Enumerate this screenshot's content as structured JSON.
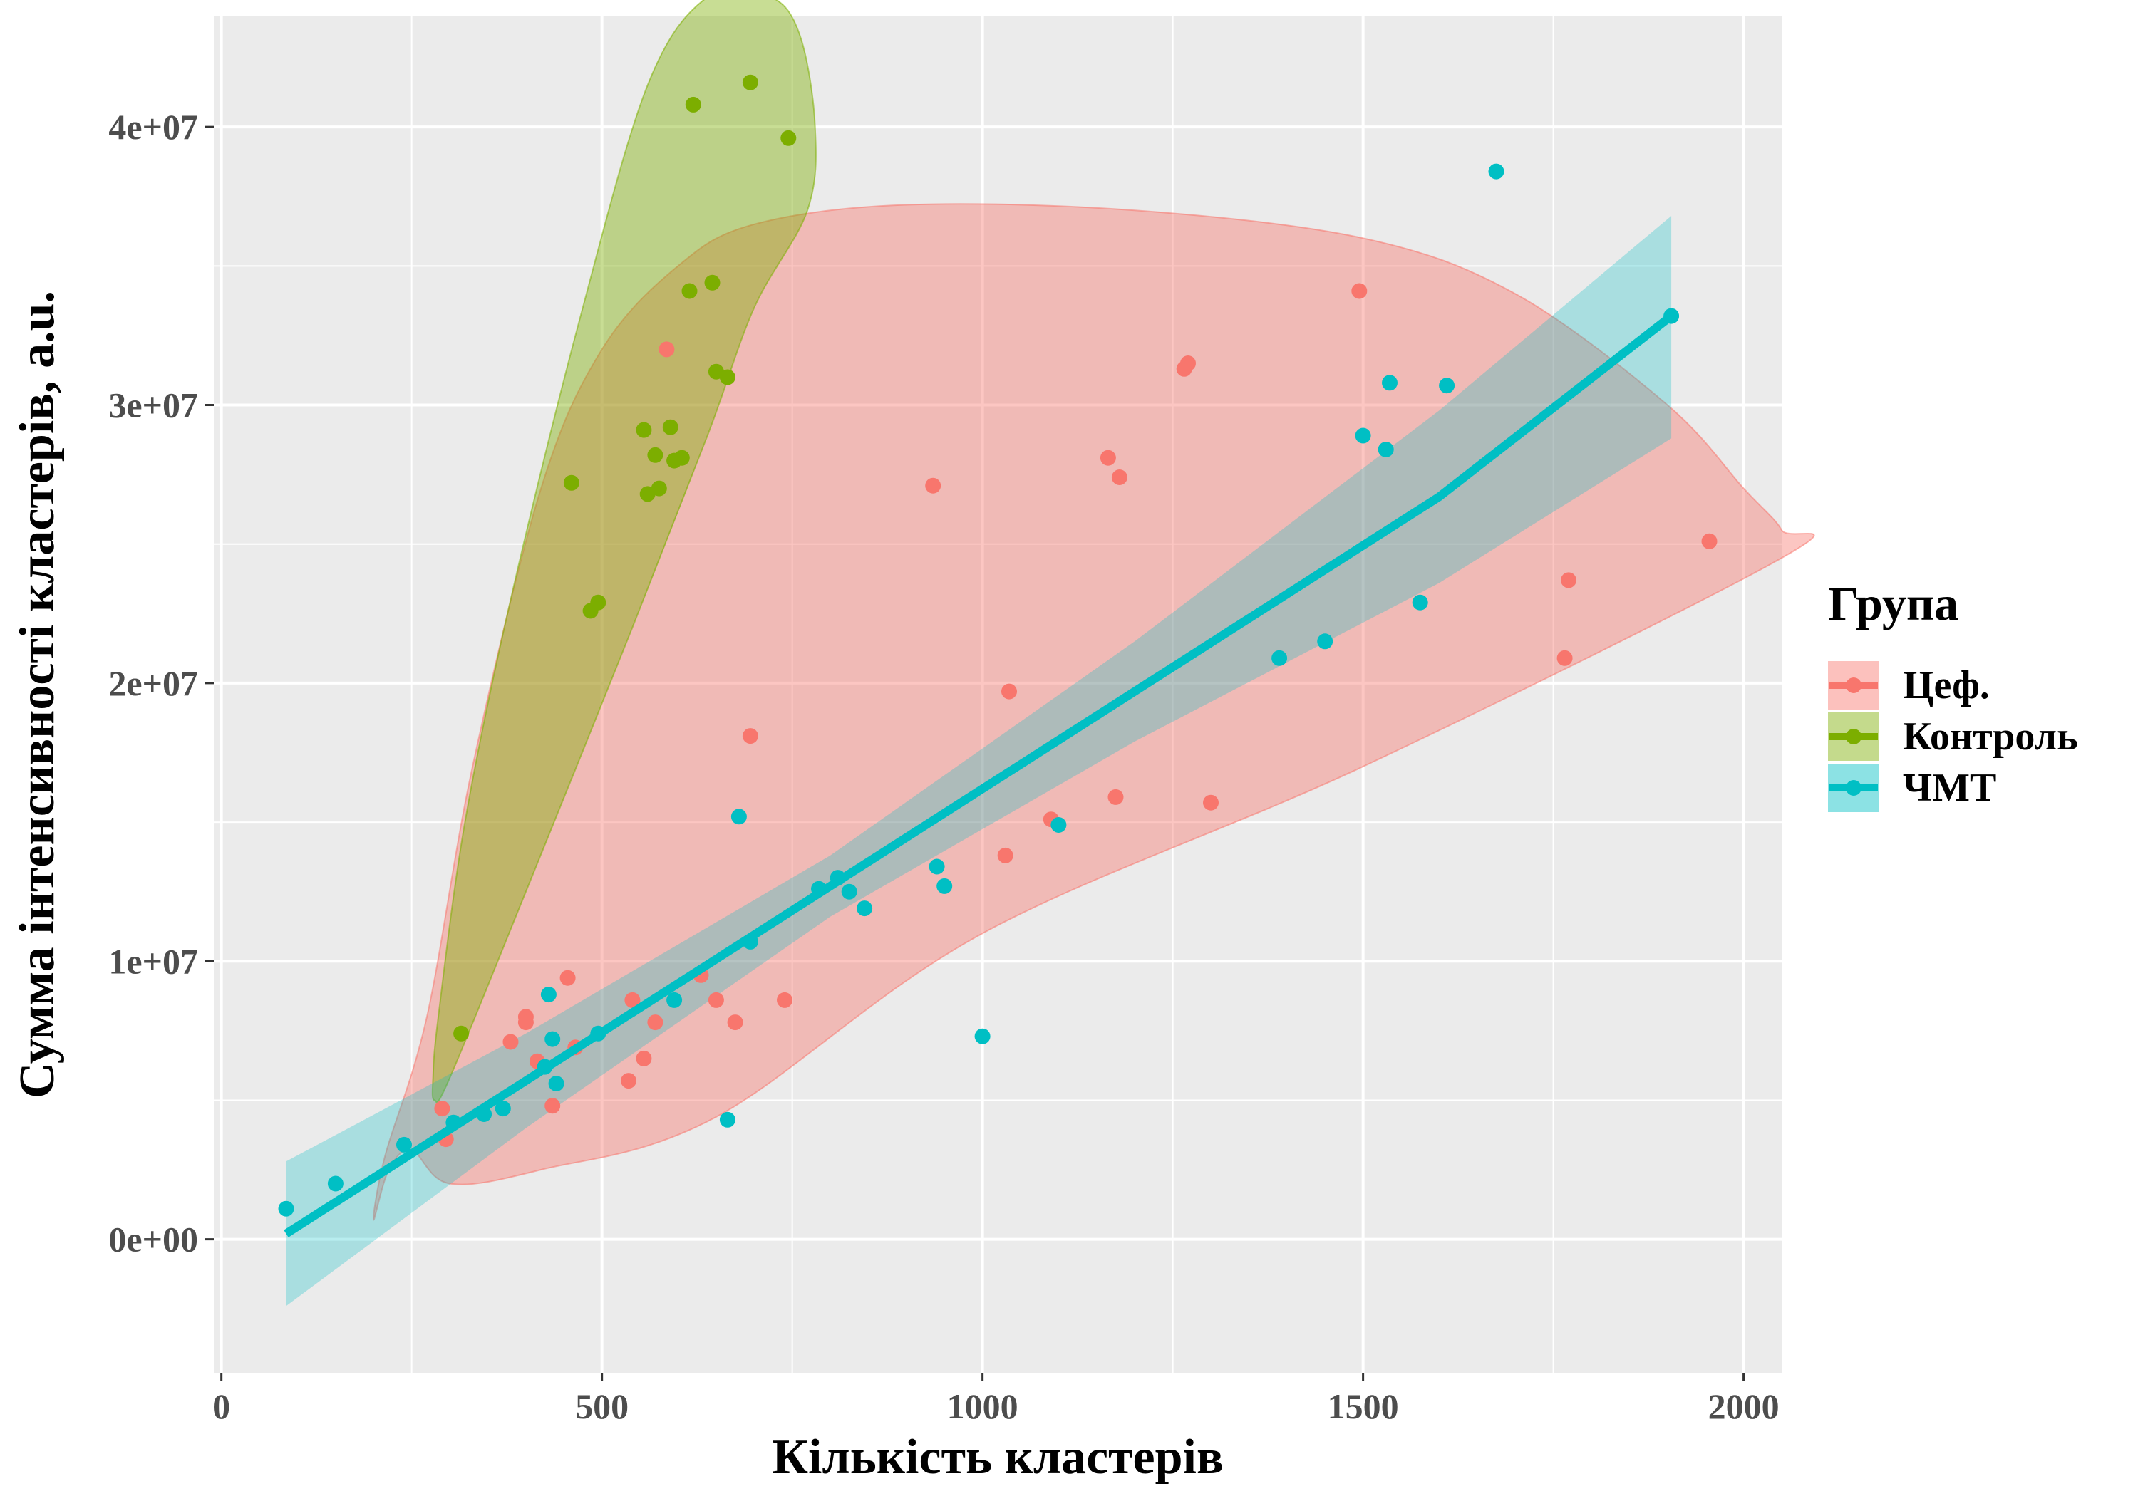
{
  "chart_data": {
    "type": "scatter",
    "title": "",
    "xlabel": "Кількість кластерів",
    "ylabel": "Сумма інтенсивності кластерів, a.u.",
    "xlim": [
      -10,
      2050
    ],
    "ylim": [
      -4800000,
      44000000
    ],
    "x_ticks": [
      0,
      500,
      1000,
      1500,
      2000
    ],
    "x_tick_labels": [
      "0",
      "500",
      "1000",
      "1500",
      "2000"
    ],
    "y_ticks": [
      0,
      10000000,
      20000000,
      30000000,
      40000000
    ],
    "y_tick_labels": [
      "0e+00",
      "1e+07",
      "2e+07",
      "3e+07",
      "4e+07"
    ],
    "grid": true,
    "legend": {
      "title": "Група",
      "position": "right"
    },
    "series": [
      {
        "name": "Цеф.",
        "color": "#F8766D",
        "points": [
          {
            "x": 290,
            "y": 4700000
          },
          {
            "x": 295,
            "y": 3600000
          },
          {
            "x": 380,
            "y": 7100000
          },
          {
            "x": 400,
            "y": 8000000
          },
          {
            "x": 400,
            "y": 7800000
          },
          {
            "x": 415,
            "y": 6400000
          },
          {
            "x": 435,
            "y": 4800000
          },
          {
            "x": 455,
            "y": 9400000
          },
          {
            "x": 465,
            "y": 6900000
          },
          {
            "x": 535,
            "y": 5700000
          },
          {
            "x": 540,
            "y": 8600000
          },
          {
            "x": 555,
            "y": 6500000
          },
          {
            "x": 570,
            "y": 7800000
          },
          {
            "x": 585,
            "y": 32000000
          },
          {
            "x": 630,
            "y": 9500000
          },
          {
            "x": 650,
            "y": 8600000
          },
          {
            "x": 675,
            "y": 7800000
          },
          {
            "x": 695,
            "y": 18100000
          },
          {
            "x": 740,
            "y": 8600000
          },
          {
            "x": 935,
            "y": 27100000
          },
          {
            "x": 1030,
            "y": 13800000
          },
          {
            "x": 1035,
            "y": 19700000
          },
          {
            "x": 1090,
            "y": 15100000
          },
          {
            "x": 1165,
            "y": 28100000
          },
          {
            "x": 1175,
            "y": 15900000
          },
          {
            "x": 1180,
            "y": 27400000
          },
          {
            "x": 1265,
            "y": 31300000
          },
          {
            "x": 1270,
            "y": 31500000
          },
          {
            "x": 1300,
            "y": 15700000
          },
          {
            "x": 1495,
            "y": 34100000
          },
          {
            "x": 1765,
            "y": 20900000
          },
          {
            "x": 1770,
            "y": 23700000
          },
          {
            "x": 1955,
            "y": 25100000
          }
        ],
        "ellipse": [
          [
            200,
            700000
          ],
          [
            220,
            2500000
          ],
          [
            250,
            3200000
          ],
          [
            300,
            2000000
          ],
          [
            420,
            2500000
          ],
          [
            650,
            4400000
          ],
          [
            1000,
            11000000
          ],
          [
            1500,
            17000000
          ],
          [
            2050,
            24500000
          ],
          [
            2050,
            25500000
          ],
          [
            2000,
            27000000
          ],
          [
            1900,
            30000000
          ],
          [
            1700,
            34000000
          ],
          [
            1500,
            36000000
          ],
          [
            1200,
            37000000
          ],
          [
            900,
            37200000
          ],
          [
            700,
            36500000
          ],
          [
            600,
            35000000
          ],
          [
            500,
            32000000
          ],
          [
            420,
            27000000
          ],
          [
            330,
            17000000
          ],
          [
            270,
            8000000
          ],
          [
            215,
            3000000
          ]
        ]
      },
      {
        "name": "Контроль",
        "color": "#7CAE00",
        "points": [
          {
            "x": 315,
            "y": 7400000
          },
          {
            "x": 460,
            "y": 27200000
          },
          {
            "x": 485,
            "y": 22600000
          },
          {
            "x": 495,
            "y": 22900000
          },
          {
            "x": 555,
            "y": 29100000
          },
          {
            "x": 560,
            "y": 26800000
          },
          {
            "x": 570,
            "y": 28200000
          },
          {
            "x": 575,
            "y": 27000000
          },
          {
            "x": 590,
            "y": 29200000
          },
          {
            "x": 595,
            "y": 28000000
          },
          {
            "x": 605,
            "y": 28100000
          },
          {
            "x": 615,
            "y": 34100000
          },
          {
            "x": 620,
            "y": 40800000
          },
          {
            "x": 645,
            "y": 34400000
          },
          {
            "x": 650,
            "y": 31200000
          },
          {
            "x": 665,
            "y": 31000000
          },
          {
            "x": 695,
            "y": 41600000
          },
          {
            "x": 745,
            "y": 39600000
          }
        ],
        "ellipse": [
          [
            280,
            5000000
          ],
          [
            300,
            5800000
          ],
          [
            400,
            12500000
          ],
          [
            540,
            22000000
          ],
          [
            640,
            29000000
          ],
          [
            700,
            33500000
          ],
          [
            770,
            37000000
          ],
          [
            780,
            40000000
          ],
          [
            760,
            43300000
          ],
          [
            720,
            44700000
          ],
          [
            640,
            44700000
          ],
          [
            560,
            41500000
          ],
          [
            470,
            33000000
          ],
          [
            380,
            23000000
          ],
          [
            320,
            15000000
          ],
          [
            285,
            8000000
          ],
          [
            278,
            5800000
          ]
        ]
      },
      {
        "name": "ЧМТ",
        "color": "#00BFC4",
        "points": [
          {
            "x": 85,
            "y": 1100000
          },
          {
            "x": 150,
            "y": 2000000
          },
          {
            "x": 240,
            "y": 3400000
          },
          {
            "x": 305,
            "y": 4200000
          },
          {
            "x": 345,
            "y": 4500000
          },
          {
            "x": 370,
            "y": 4700000
          },
          {
            "x": 425,
            "y": 6200000
          },
          {
            "x": 430,
            "y": 8800000
          },
          {
            "x": 435,
            "y": 7200000
          },
          {
            "x": 440,
            "y": 5600000
          },
          {
            "x": 495,
            "y": 7400000
          },
          {
            "x": 595,
            "y": 8600000
          },
          {
            "x": 665,
            "y": 4300000
          },
          {
            "x": 680,
            "y": 15200000
          },
          {
            "x": 695,
            "y": 10700000
          },
          {
            "x": 785,
            "y": 12600000
          },
          {
            "x": 810,
            "y": 13000000
          },
          {
            "x": 825,
            "y": 12500000
          },
          {
            "x": 845,
            "y": 11900000
          },
          {
            "x": 940,
            "y": 13400000
          },
          {
            "x": 950,
            "y": 12700000
          },
          {
            "x": 1000,
            "y": 7300000
          },
          {
            "x": 1100,
            "y": 14900000
          },
          {
            "x": 1390,
            "y": 20900000
          },
          {
            "x": 1450,
            "y": 21500000
          },
          {
            "x": 1500,
            "y": 28900000
          },
          {
            "x": 1530,
            "y": 28400000
          },
          {
            "x": 1535,
            "y": 30800000
          },
          {
            "x": 1575,
            "y": 22900000
          },
          {
            "x": 1610,
            "y": 30700000
          },
          {
            "x": 1675,
            "y": 38400000
          },
          {
            "x": 1905,
            "y": 33200000
          }
        ],
        "fit": {
          "x": [
            85,
            400,
            800,
            1200,
            1600,
            1905
          ],
          "y": [
            200000,
            5700000,
            12700000,
            19700000,
            26700000,
            33200000
          ],
          "lower": [
            -2400000,
            4000000,
            11600000,
            17900000,
            23600000,
            28800000
          ],
          "upper": [
            2800000,
            7400000,
            13800000,
            21500000,
            29800000,
            36800000
          ]
        }
      }
    ]
  }
}
